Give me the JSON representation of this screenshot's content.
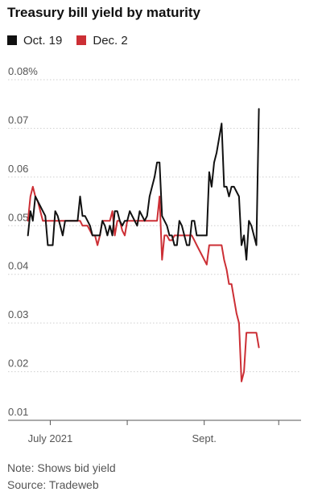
{
  "chart_data": {
    "type": "line",
    "title": "Treasury bill yield by maturity",
    "xlabel": "",
    "ylabel": "",
    "ylim": [
      0.01,
      0.08
    ],
    "y_ticks": [
      {
        "value": 0.08,
        "label": "0.08%"
      },
      {
        "value": 0.07,
        "label": "0.07"
      },
      {
        "value": 0.06,
        "label": "0.06"
      },
      {
        "value": 0.05,
        "label": "0.05"
      },
      {
        "value": 0.04,
        "label": "0.04"
      },
      {
        "value": 0.03,
        "label": "0.03"
      },
      {
        "value": 0.02,
        "label": "0.02"
      },
      {
        "value": 0.01,
        "label": "0.01"
      }
    ],
    "x_range": [
      "2021-06-14",
      "2021-10-10"
    ],
    "x_ticks": [
      {
        "date": "2021-07-01",
        "label": "July 2021"
      },
      {
        "date": "2021-08-01",
        "label": ""
      },
      {
        "date": "2021-09-01",
        "label": "Sept."
      },
      {
        "date": "2021-10-01",
        "label": ""
      }
    ],
    "grid": "horizontal",
    "legend": "top-left",
    "series": [
      {
        "name": "Oct. 19",
        "color": "#111111",
        "points": [
          [
            "2021-06-22",
            0.048
          ],
          [
            "2021-06-23",
            0.053
          ],
          [
            "2021-06-24",
            0.051
          ],
          [
            "2021-06-25",
            0.056
          ],
          [
            "2021-06-26",
            0.055
          ],
          [
            "2021-06-27",
            0.054
          ],
          [
            "2021-06-28",
            0.053
          ],
          [
            "2021-06-29",
            0.052
          ],
          [
            "2021-06-30",
            0.046
          ],
          [
            "2021-07-01",
            0.046
          ],
          [
            "2021-07-02",
            0.046
          ],
          [
            "2021-07-03",
            0.053
          ],
          [
            "2021-07-04",
            0.052
          ],
          [
            "2021-07-05",
            0.05
          ],
          [
            "2021-07-06",
            0.048
          ],
          [
            "2021-07-07",
            0.051
          ],
          [
            "2021-07-08",
            0.051
          ],
          [
            "2021-07-09",
            0.051
          ],
          [
            "2021-07-10",
            0.051
          ],
          [
            "2021-07-11",
            0.051
          ],
          [
            "2021-07-12",
            0.051
          ],
          [
            "2021-07-13",
            0.056
          ],
          [
            "2021-07-14",
            0.052
          ],
          [
            "2021-07-15",
            0.052
          ],
          [
            "2021-07-16",
            0.051
          ],
          [
            "2021-07-17",
            0.05
          ],
          [
            "2021-07-18",
            0.048
          ],
          [
            "2021-07-19",
            0.048
          ],
          [
            "2021-07-20",
            0.048
          ],
          [
            "2021-07-21",
            0.048
          ],
          [
            "2021-07-22",
            0.051
          ],
          [
            "2021-07-23",
            0.05
          ],
          [
            "2021-07-24",
            0.048
          ],
          [
            "2021-07-25",
            0.05
          ],
          [
            "2021-07-26",
            0.048
          ],
          [
            "2021-07-27",
            0.053
          ],
          [
            "2021-07-28",
            0.053
          ],
          [
            "2021-07-29",
            0.051
          ],
          [
            "2021-07-30",
            0.05
          ],
          [
            "2021-07-31",
            0.051
          ],
          [
            "2021-08-01",
            0.051
          ],
          [
            "2021-08-02",
            0.053
          ],
          [
            "2021-08-03",
            0.052
          ],
          [
            "2021-08-04",
            0.051
          ],
          [
            "2021-08-05",
            0.05
          ],
          [
            "2021-08-06",
            0.053
          ],
          [
            "2021-08-07",
            0.052
          ],
          [
            "2021-08-08",
            0.051
          ],
          [
            "2021-08-09",
            0.052
          ],
          [
            "2021-08-10",
            0.056
          ],
          [
            "2021-08-11",
            0.058
          ],
          [
            "2021-08-12",
            0.06
          ],
          [
            "2021-08-13",
            0.063
          ],
          [
            "2021-08-14",
            0.063
          ],
          [
            "2021-08-15",
            0.052
          ],
          [
            "2021-08-16",
            0.051
          ],
          [
            "2021-08-17",
            0.05
          ],
          [
            "2021-08-18",
            0.048
          ],
          [
            "2021-08-19",
            0.048
          ],
          [
            "2021-08-20",
            0.046
          ],
          [
            "2021-08-21",
            0.046
          ],
          [
            "2021-08-22",
            0.051
          ],
          [
            "2021-08-23",
            0.05
          ],
          [
            "2021-08-24",
            0.048
          ],
          [
            "2021-08-25",
            0.046
          ],
          [
            "2021-08-26",
            0.046
          ],
          [
            "2021-08-27",
            0.051
          ],
          [
            "2021-08-28",
            0.051
          ],
          [
            "2021-08-29",
            0.048
          ],
          [
            "2021-08-30",
            0.048
          ],
          [
            "2021-08-31",
            0.048
          ],
          [
            "2021-09-01",
            0.048
          ],
          [
            "2021-09-02",
            0.048
          ],
          [
            "2021-09-03",
            0.061
          ],
          [
            "2021-09-04",
            0.058
          ],
          [
            "2021-09-05",
            0.063
          ],
          [
            "2021-09-06",
            0.065
          ],
          [
            "2021-09-07",
            0.068
          ],
          [
            "2021-09-08",
            0.071
          ],
          [
            "2021-09-09",
            0.058
          ],
          [
            "2021-09-10",
            0.058
          ],
          [
            "2021-09-11",
            0.056
          ],
          [
            "2021-09-12",
            0.058
          ],
          [
            "2021-09-13",
            0.058
          ],
          [
            "2021-09-14",
            0.057
          ],
          [
            "2021-09-15",
            0.056
          ],
          [
            "2021-09-16",
            0.046
          ],
          [
            "2021-09-17",
            0.048
          ],
          [
            "2021-09-18",
            0.043
          ],
          [
            "2021-09-19",
            0.051
          ],
          [
            "2021-09-20",
            0.05
          ],
          [
            "2021-09-21",
            0.048
          ],
          [
            "2021-09-22",
            0.046
          ],
          [
            "2021-09-23",
            0.074
          ]
        ]
      },
      {
        "name": "Dec. 2",
        "color": "#cc2f35",
        "points": [
          [
            "2021-06-22",
            0.051
          ],
          [
            "2021-06-23",
            0.056
          ],
          [
            "2021-06-24",
            0.058
          ],
          [
            "2021-06-25",
            0.056
          ],
          [
            "2021-06-26",
            0.055
          ],
          [
            "2021-06-27",
            0.053
          ],
          [
            "2021-06-28",
            0.051
          ],
          [
            "2021-06-29",
            0.051
          ],
          [
            "2021-06-30",
            0.051
          ],
          [
            "2021-07-01",
            0.051
          ],
          [
            "2021-07-02",
            0.051
          ],
          [
            "2021-07-03",
            0.051
          ],
          [
            "2021-07-04",
            0.051
          ],
          [
            "2021-07-05",
            0.051
          ],
          [
            "2021-07-06",
            0.051
          ],
          [
            "2021-07-07",
            0.051
          ],
          [
            "2021-07-08",
            0.051
          ],
          [
            "2021-07-09",
            0.051
          ],
          [
            "2021-07-10",
            0.051
          ],
          [
            "2021-07-11",
            0.051
          ],
          [
            "2021-07-12",
            0.051
          ],
          [
            "2021-07-13",
            0.051
          ],
          [
            "2021-07-14",
            0.05
          ],
          [
            "2021-07-15",
            0.05
          ],
          [
            "2021-07-16",
            0.05
          ],
          [
            "2021-07-17",
            0.049
          ],
          [
            "2021-07-18",
            0.048
          ],
          [
            "2021-07-19",
            0.048
          ],
          [
            "2021-07-20",
            0.046
          ],
          [
            "2021-07-21",
            0.048
          ],
          [
            "2021-07-22",
            0.051
          ],
          [
            "2021-07-23",
            0.051
          ],
          [
            "2021-07-24",
            0.051
          ],
          [
            "2021-07-25",
            0.051
          ],
          [
            "2021-07-26",
            0.053
          ],
          [
            "2021-07-27",
            0.048
          ],
          [
            "2021-07-28",
            0.051
          ],
          [
            "2021-07-29",
            0.051
          ],
          [
            "2021-07-30",
            0.049
          ],
          [
            "2021-07-31",
            0.048
          ],
          [
            "2021-08-01",
            0.051
          ],
          [
            "2021-08-02",
            0.051
          ],
          [
            "2021-08-03",
            0.051
          ],
          [
            "2021-08-04",
            0.051
          ],
          [
            "2021-08-05",
            0.051
          ],
          [
            "2021-08-06",
            0.051
          ],
          [
            "2021-08-07",
            0.051
          ],
          [
            "2021-08-08",
            0.051
          ],
          [
            "2021-08-09",
            0.051
          ],
          [
            "2021-08-10",
            0.051
          ],
          [
            "2021-08-11",
            0.051
          ],
          [
            "2021-08-12",
            0.051
          ],
          [
            "2021-08-13",
            0.051
          ],
          [
            "2021-08-14",
            0.056
          ],
          [
            "2021-08-15",
            0.043
          ],
          [
            "2021-08-16",
            0.048
          ],
          [
            "2021-08-17",
            0.048
          ],
          [
            "2021-08-18",
            0.047
          ],
          [
            "2021-08-19",
            0.047
          ],
          [
            "2021-08-20",
            0.048
          ],
          [
            "2021-08-21",
            0.048
          ],
          [
            "2021-08-22",
            0.048
          ],
          [
            "2021-08-23",
            0.048
          ],
          [
            "2021-08-24",
            0.048
          ],
          [
            "2021-08-25",
            0.048
          ],
          [
            "2021-08-26",
            0.048
          ],
          [
            "2021-08-27",
            0.048
          ],
          [
            "2021-08-28",
            0.047
          ],
          [
            "2021-08-29",
            0.046
          ],
          [
            "2021-08-30",
            0.045
          ],
          [
            "2021-08-31",
            0.044
          ],
          [
            "2021-09-01",
            0.043
          ],
          [
            "2021-09-02",
            0.042
          ],
          [
            "2021-09-03",
            0.046
          ],
          [
            "2021-09-04",
            0.046
          ],
          [
            "2021-09-05",
            0.046
          ],
          [
            "2021-09-06",
            0.046
          ],
          [
            "2021-09-07",
            0.046
          ],
          [
            "2021-09-08",
            0.046
          ],
          [
            "2021-09-09",
            0.043
          ],
          [
            "2021-09-10",
            0.041
          ],
          [
            "2021-09-11",
            0.038
          ],
          [
            "2021-09-12",
            0.038
          ],
          [
            "2021-09-13",
            0.035
          ],
          [
            "2021-09-14",
            0.032
          ],
          [
            "2021-09-15",
            0.03
          ],
          [
            "2021-09-16",
            0.018
          ],
          [
            "2021-09-17",
            0.02
          ],
          [
            "2021-09-18",
            0.028
          ],
          [
            "2021-09-19",
            0.028
          ],
          [
            "2021-09-20",
            0.028
          ],
          [
            "2021-09-21",
            0.028
          ],
          [
            "2021-09-22",
            0.028
          ],
          [
            "2021-09-23",
            0.025
          ]
        ]
      }
    ]
  },
  "notes": {
    "note": "Note: Shows bid yield",
    "source": "Source: Tradeweb"
  }
}
